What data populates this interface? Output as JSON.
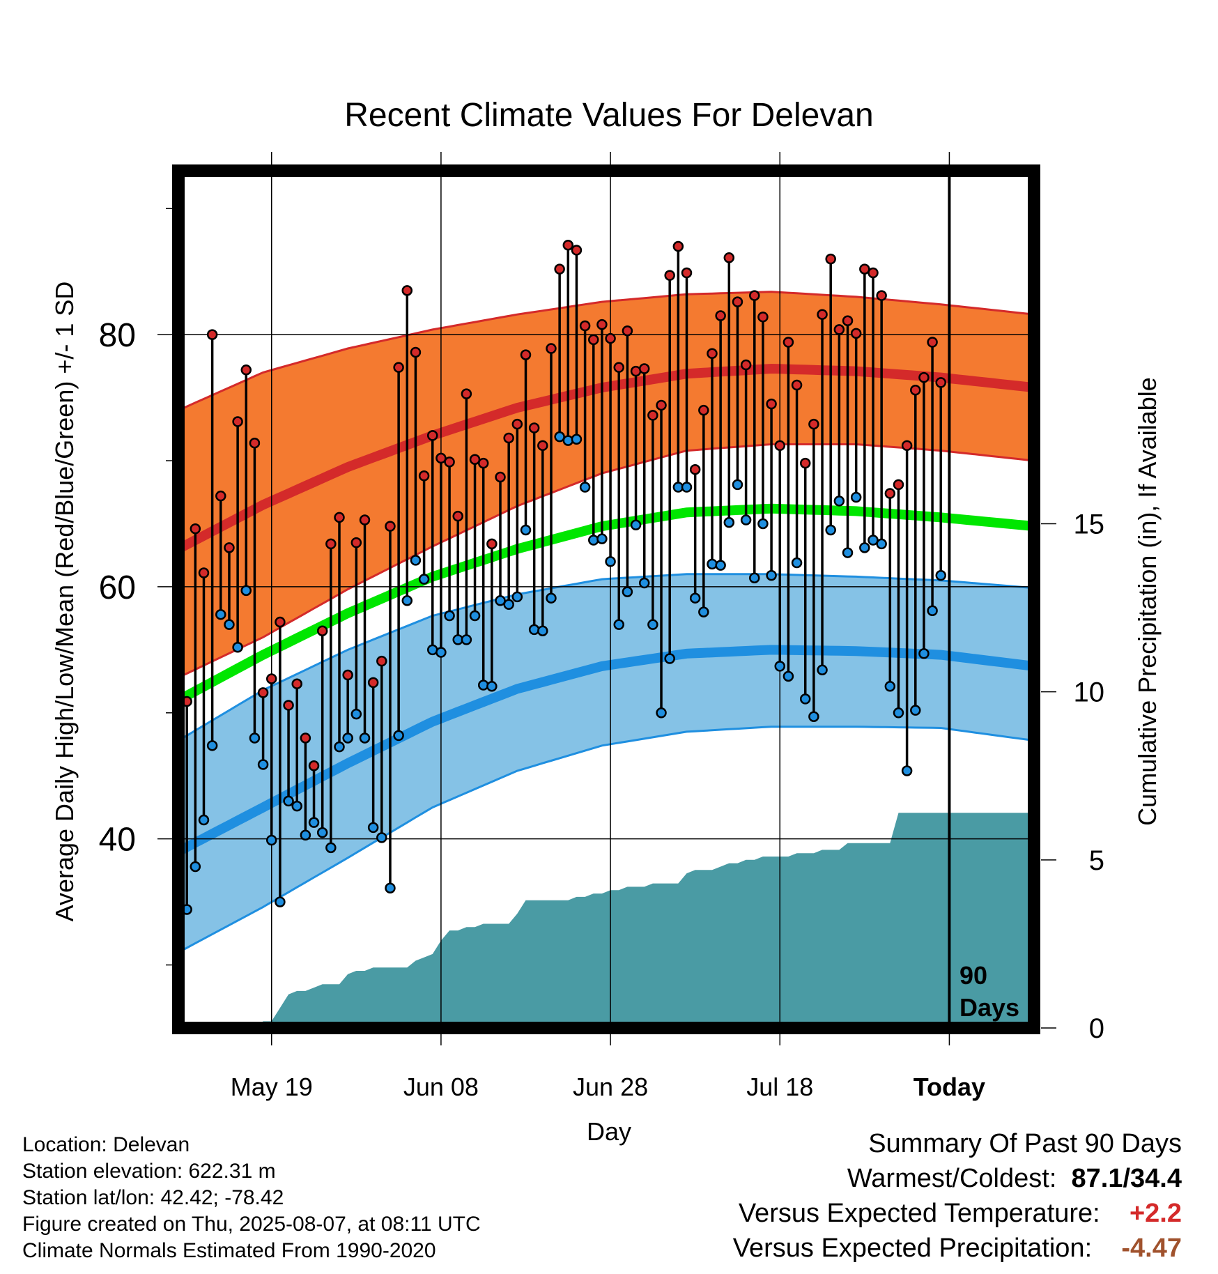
{
  "chart_data": {
    "type": "line",
    "title": "Recent Climate Values For Delevan",
    "xlabel": "Day",
    "ylabel": "Average Daily High/Low/Mean (Red/Blue/Green) +/- 1 SD",
    "y2label": "Cumulative Precipitation (in), If Available",
    "x_tick_labels": [
      "May 19",
      "Jun 08",
      "Jun 28",
      "Jul 18",
      "Today"
    ],
    "x_tick_days": [
      11,
      31,
      51,
      71,
      91
    ],
    "x_range_days": [
      0,
      101
    ],
    "ylim": [
      25,
      93
    ],
    "y_ticks": [
      40,
      60,
      80
    ],
    "y2lim": [
      0,
      25.5
    ],
    "y2_ticks": [
      0,
      5,
      10,
      15
    ],
    "today_marker": {
      "day": 91,
      "label_line1": "90",
      "label_line2": "Days"
    },
    "normals": {
      "day": [
        0,
        10,
        20,
        30,
        40,
        50,
        60,
        70,
        80,
        90,
        101
      ],
      "high_mean": [
        63.0,
        66.5,
        69.5,
        72.0,
        74.2,
        75.8,
        76.9,
        77.3,
        77.1,
        76.6,
        75.8
      ],
      "high_upper": [
        74.0,
        77.0,
        78.9,
        80.4,
        81.6,
        82.6,
        83.2,
        83.4,
        83.0,
        82.4,
        81.6
      ],
      "high_lower": [
        52.8,
        56.0,
        59.8,
        63.2,
        66.4,
        69.0,
        70.8,
        71.3,
        71.3,
        70.8,
        70.0
      ],
      "mean_mean": [
        51.0,
        54.6,
        57.9,
        60.8,
        63.0,
        64.8,
        65.9,
        66.2,
        66.0,
        65.5,
        64.8
      ],
      "low_mean": [
        39.0,
        42.5,
        46.0,
        49.3,
        51.9,
        53.7,
        54.7,
        55.0,
        54.9,
        54.6,
        53.7
      ],
      "low_upper": [
        47.8,
        51.8,
        55.0,
        57.7,
        59.4,
        60.6,
        61.0,
        61.0,
        60.8,
        60.5,
        59.9
      ],
      "low_lower": [
        31.0,
        34.6,
        38.5,
        42.5,
        45.4,
        47.4,
        48.5,
        48.9,
        48.9,
        48.8,
        47.8
      ]
    },
    "series": [
      {
        "name": "High",
        "color": "#d42a2a",
        "values": [
          50.9,
          64.6,
          61.1,
          80.0,
          67.2,
          63.1,
          73.1,
          77.2,
          71.4,
          51.6,
          52.7,
          57.2,
          50.6,
          52.3,
          48.0,
          45.8,
          56.5,
          63.4,
          65.5,
          53.0,
          63.5,
          65.3,
          52.4,
          54.1,
          64.8,
          77.4,
          83.5,
          78.6,
          68.8,
          72.0,
          70.2,
          69.9,
          65.6,
          75.3,
          70.1,
          69.8,
          63.4,
          68.7,
          71.8,
          72.9,
          78.4,
          72.6,
          71.2,
          78.9,
          85.2,
          87.1,
          86.7,
          80.7,
          79.6,
          80.8,
          79.7,
          77.4,
          80.3,
          77.1,
          77.3,
          73.6,
          74.4,
          84.7,
          87.0,
          84.9,
          69.3,
          74.0,
          78.5,
          81.5,
          86.1,
          82.6,
          77.6,
          83.1,
          81.4,
          74.5,
          71.2,
          79.4,
          76.0,
          69.8,
          72.9,
          81.6,
          86.0,
          80.4,
          81.1,
          80.1,
          85.2,
          84.9,
          83.1,
          67.4,
          68.1,
          71.2,
          75.6,
          76.6,
          79.4,
          76.2
        ]
      },
      {
        "name": "Low",
        "color": "#1f8fe0",
        "values": [
          34.4,
          37.8,
          41.5,
          47.4,
          57.8,
          57.0,
          55.2,
          59.7,
          48.0,
          45.9,
          39.9,
          35.0,
          43.0,
          42.6,
          40.3,
          41.3,
          40.5,
          39.3,
          47.3,
          48.0,
          49.9,
          48.0,
          40.9,
          40.1,
          36.1,
          48.2,
          58.9,
          62.1,
          60.6,
          55.0,
          54.8,
          57.7,
          55.8,
          55.8,
          57.7,
          52.2,
          52.1,
          58.9,
          58.6,
          59.2,
          64.5,
          56.6,
          56.5,
          59.1,
          71.9,
          71.6,
          71.7,
          67.9,
          63.7,
          63.8,
          62.0,
          57.0,
          59.6,
          64.9,
          60.3,
          57.0,
          50.0,
          54.3,
          67.9,
          67.9,
          59.1,
          58.0,
          61.8,
          61.7,
          65.1,
          68.1,
          65.3,
          60.7,
          65.0,
          60.9,
          53.7,
          52.9,
          61.9,
          51.1,
          49.7,
          53.4,
          64.5,
          66.8,
          62.7,
          67.1,
          63.1,
          63.7,
          63.4,
          52.1,
          50.0,
          45.4,
          50.2,
          54.7,
          58.1,
          60.9
        ]
      }
    ],
    "precipitation": {
      "name": "Cumulative Precipitation",
      "color": "#4a9ba4",
      "day": [
        0,
        9,
        10,
        11,
        12,
        13,
        14,
        15,
        16,
        17,
        18,
        19,
        20,
        21,
        22,
        23,
        24,
        25,
        26,
        27,
        28,
        29,
        30,
        31,
        32,
        33,
        34,
        35,
        36,
        37,
        38,
        39,
        40,
        41,
        42,
        43,
        44,
        45,
        46,
        47,
        48,
        49,
        50,
        51,
        52,
        53,
        54,
        55,
        56,
        57,
        58,
        59,
        60,
        61,
        62,
        63,
        64,
        65,
        66,
        67,
        68,
        69,
        70,
        71,
        72,
        73,
        74,
        75,
        76,
        77,
        78,
        79,
        80,
        81,
        82,
        83,
        84,
        85,
        86,
        87,
        88,
        89,
        90,
        91,
        101
      ],
      "value": [
        0.0,
        0.0,
        0.2,
        0.2,
        0.6,
        1.0,
        1.1,
        1.1,
        1.2,
        1.3,
        1.3,
        1.3,
        1.6,
        1.7,
        1.7,
        1.8,
        1.8,
        1.8,
        1.8,
        1.8,
        2.0,
        2.1,
        2.2,
        2.6,
        2.9,
        2.9,
        3.0,
        3.0,
        3.1,
        3.1,
        3.1,
        3.1,
        3.4,
        3.8,
        3.8,
        3.8,
        3.8,
        3.8,
        3.8,
        3.9,
        3.9,
        4.0,
        4.0,
        4.1,
        4.1,
        4.2,
        4.2,
        4.2,
        4.3,
        4.3,
        4.3,
        4.3,
        4.6,
        4.7,
        4.7,
        4.7,
        4.8,
        4.9,
        4.9,
        5.0,
        5.0,
        5.1,
        5.1,
        5.1,
        5.1,
        5.2,
        5.2,
        5.2,
        5.3,
        5.3,
        5.3,
        5.5,
        5.5,
        5.5,
        5.5,
        5.5,
        5.5,
        6.4,
        6.4,
        6.4,
        6.4,
        6.4,
        6.4,
        6.4,
        6.4
      ]
    }
  },
  "station": {
    "location": "Location: Delevan",
    "elevation": "Station elevation: 622.31 m",
    "latlon": "Station lat/lon: 42.42; -78.42",
    "created": "Figure created on Thu, 2025-08-07, at 08:11 UTC",
    "normals_period": "Climate Normals Estimated From 1990-2020"
  },
  "summary": {
    "title": "Summary Of Past 90 Days",
    "extremes_label": "Warmest/Coldest:",
    "extremes_value": "87.1/34.4",
    "temp_label": "Versus Expected Temperature:",
    "temp_value": "+2.2",
    "temp_color": "#d42a2a",
    "precip_label": "Versus Expected Precipitation:",
    "precip_value": "-4.47",
    "precip_color": "#a0522d"
  },
  "colors": {
    "high_band": "#f47a30",
    "high_line": "#d42a2a",
    "mean_line": "#00e600",
    "low_band": "#85c2e6",
    "low_line": "#1f8fe0",
    "precip_fill": "#4a9ba4"
  }
}
